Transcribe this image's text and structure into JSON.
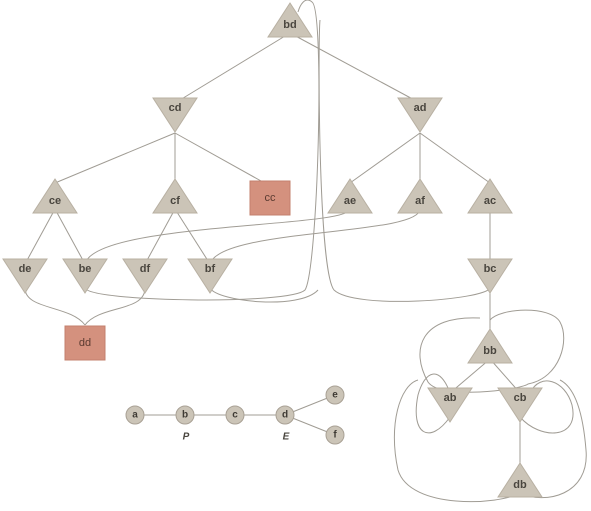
{
  "colors": {
    "node": "#cbc4b7",
    "highlight": "#d4917e",
    "edge": "#a09c94",
    "text": "#4a463f"
  },
  "tree": {
    "nodes": [
      {
        "id": "bd",
        "label": "bd",
        "shape": "triangle-up"
      },
      {
        "id": "cd",
        "label": "cd",
        "shape": "triangle-down"
      },
      {
        "id": "ad",
        "label": "ad",
        "shape": "triangle-down"
      },
      {
        "id": "ce",
        "label": "ce",
        "shape": "triangle-up"
      },
      {
        "id": "cf",
        "label": "cf",
        "shape": "triangle-up"
      },
      {
        "id": "cc",
        "label": "cc",
        "shape": "box"
      },
      {
        "id": "ae",
        "label": "ae",
        "shape": "triangle-up"
      },
      {
        "id": "af",
        "label": "af",
        "shape": "triangle-up"
      },
      {
        "id": "ac",
        "label": "ac",
        "shape": "triangle-up"
      },
      {
        "id": "de",
        "label": "de",
        "shape": "triangle-down"
      },
      {
        "id": "be",
        "label": "be",
        "shape": "triangle-down"
      },
      {
        "id": "df",
        "label": "df",
        "shape": "triangle-down"
      },
      {
        "id": "bf",
        "label": "bf",
        "shape": "triangle-down"
      },
      {
        "id": "bc",
        "label": "bc",
        "shape": "triangle-down"
      },
      {
        "id": "dd",
        "label": "dd",
        "shape": "box"
      },
      {
        "id": "bb",
        "label": "bb",
        "shape": "triangle-up"
      },
      {
        "id": "ab",
        "label": "ab",
        "shape": "triangle-down"
      },
      {
        "id": "cb",
        "label": "cb",
        "shape": "triangle-down"
      },
      {
        "id": "db",
        "label": "db",
        "shape": "triangle-up"
      }
    ]
  },
  "chain": {
    "nodes": [
      {
        "id": "a",
        "label": "a",
        "sub": ""
      },
      {
        "id": "b",
        "label": "b",
        "sub": "P"
      },
      {
        "id": "c",
        "label": "c",
        "sub": ""
      },
      {
        "id": "d",
        "label": "d",
        "sub": "E"
      },
      {
        "id": "e",
        "label": "e",
        "sub": ""
      },
      {
        "id": "f",
        "label": "f",
        "sub": ""
      }
    ]
  }
}
